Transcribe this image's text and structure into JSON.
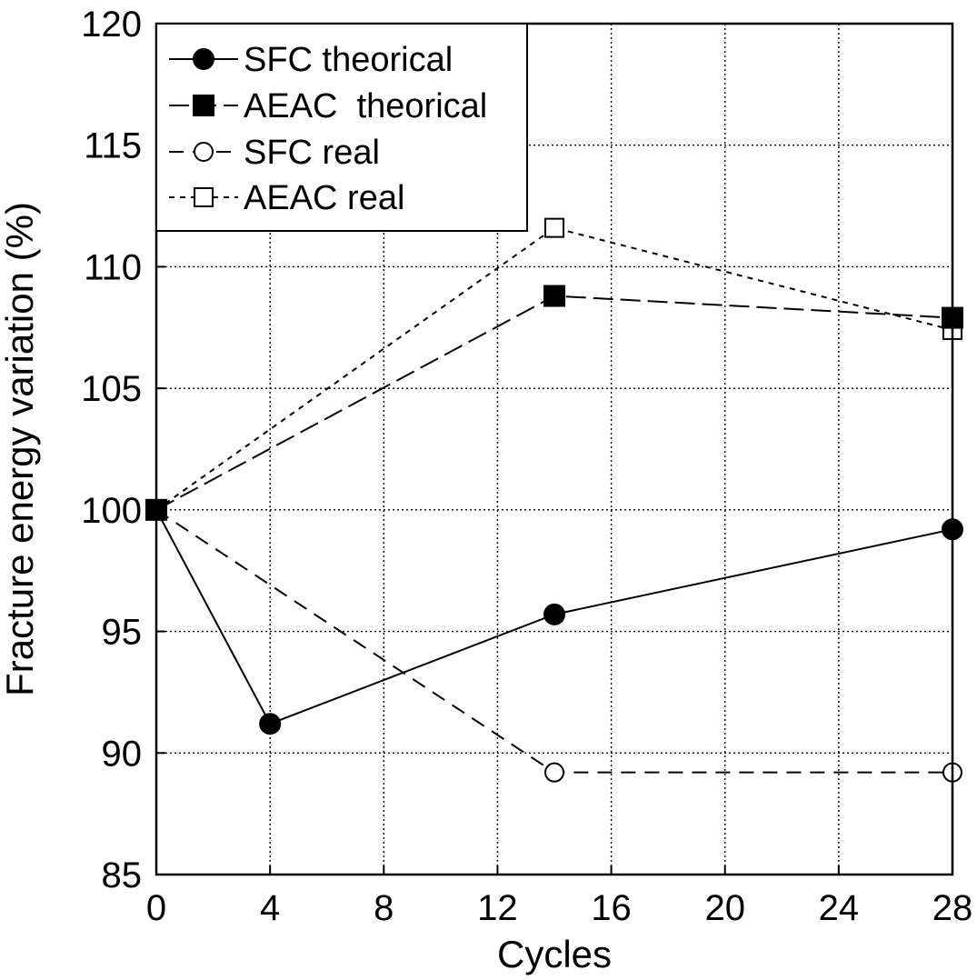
{
  "chart_data": {
    "type": "line",
    "title": "",
    "xlabel": "Cycles",
    "ylabel": "Fracture energy variation (%)",
    "xlim": [
      0,
      28
    ],
    "ylim": [
      85,
      120
    ],
    "xticks": [
      0,
      4,
      8,
      12,
      16,
      20,
      24,
      28
    ],
    "yticks": [
      85,
      90,
      95,
      100,
      105,
      110,
      115,
      120
    ],
    "xtick_labels": [
      "0",
      "4",
      "8",
      "12",
      "16",
      "20",
      "24",
      "28"
    ],
    "ytick_labels": [
      "85",
      "90",
      "95",
      "100",
      "105",
      "110",
      "115",
      "120"
    ],
    "grid": true,
    "legend_position": "top-left",
    "series": [
      {
        "name": "SFC theorical",
        "x": [
          0,
          4,
          14,
          28
        ],
        "y": [
          100,
          91.2,
          95.7,
          99.2
        ],
        "marker": "filled-circle",
        "line": "solid"
      },
      {
        "name": "AEAC  theorical",
        "x": [
          0,
          14,
          28
        ],
        "y": [
          100,
          108.8,
          107.9
        ],
        "marker": "filled-square",
        "line": "long-dash"
      },
      {
        "name": "SFC real",
        "x": [
          0,
          14,
          28
        ],
        "y": [
          100,
          89.2,
          89.2
        ],
        "marker": "open-circle",
        "line": "dash"
      },
      {
        "name": "AEAC real",
        "x": [
          0,
          14,
          28
        ],
        "y": [
          100,
          111.6,
          107.4
        ],
        "marker": "open-square",
        "line": "short-dash"
      }
    ]
  }
}
